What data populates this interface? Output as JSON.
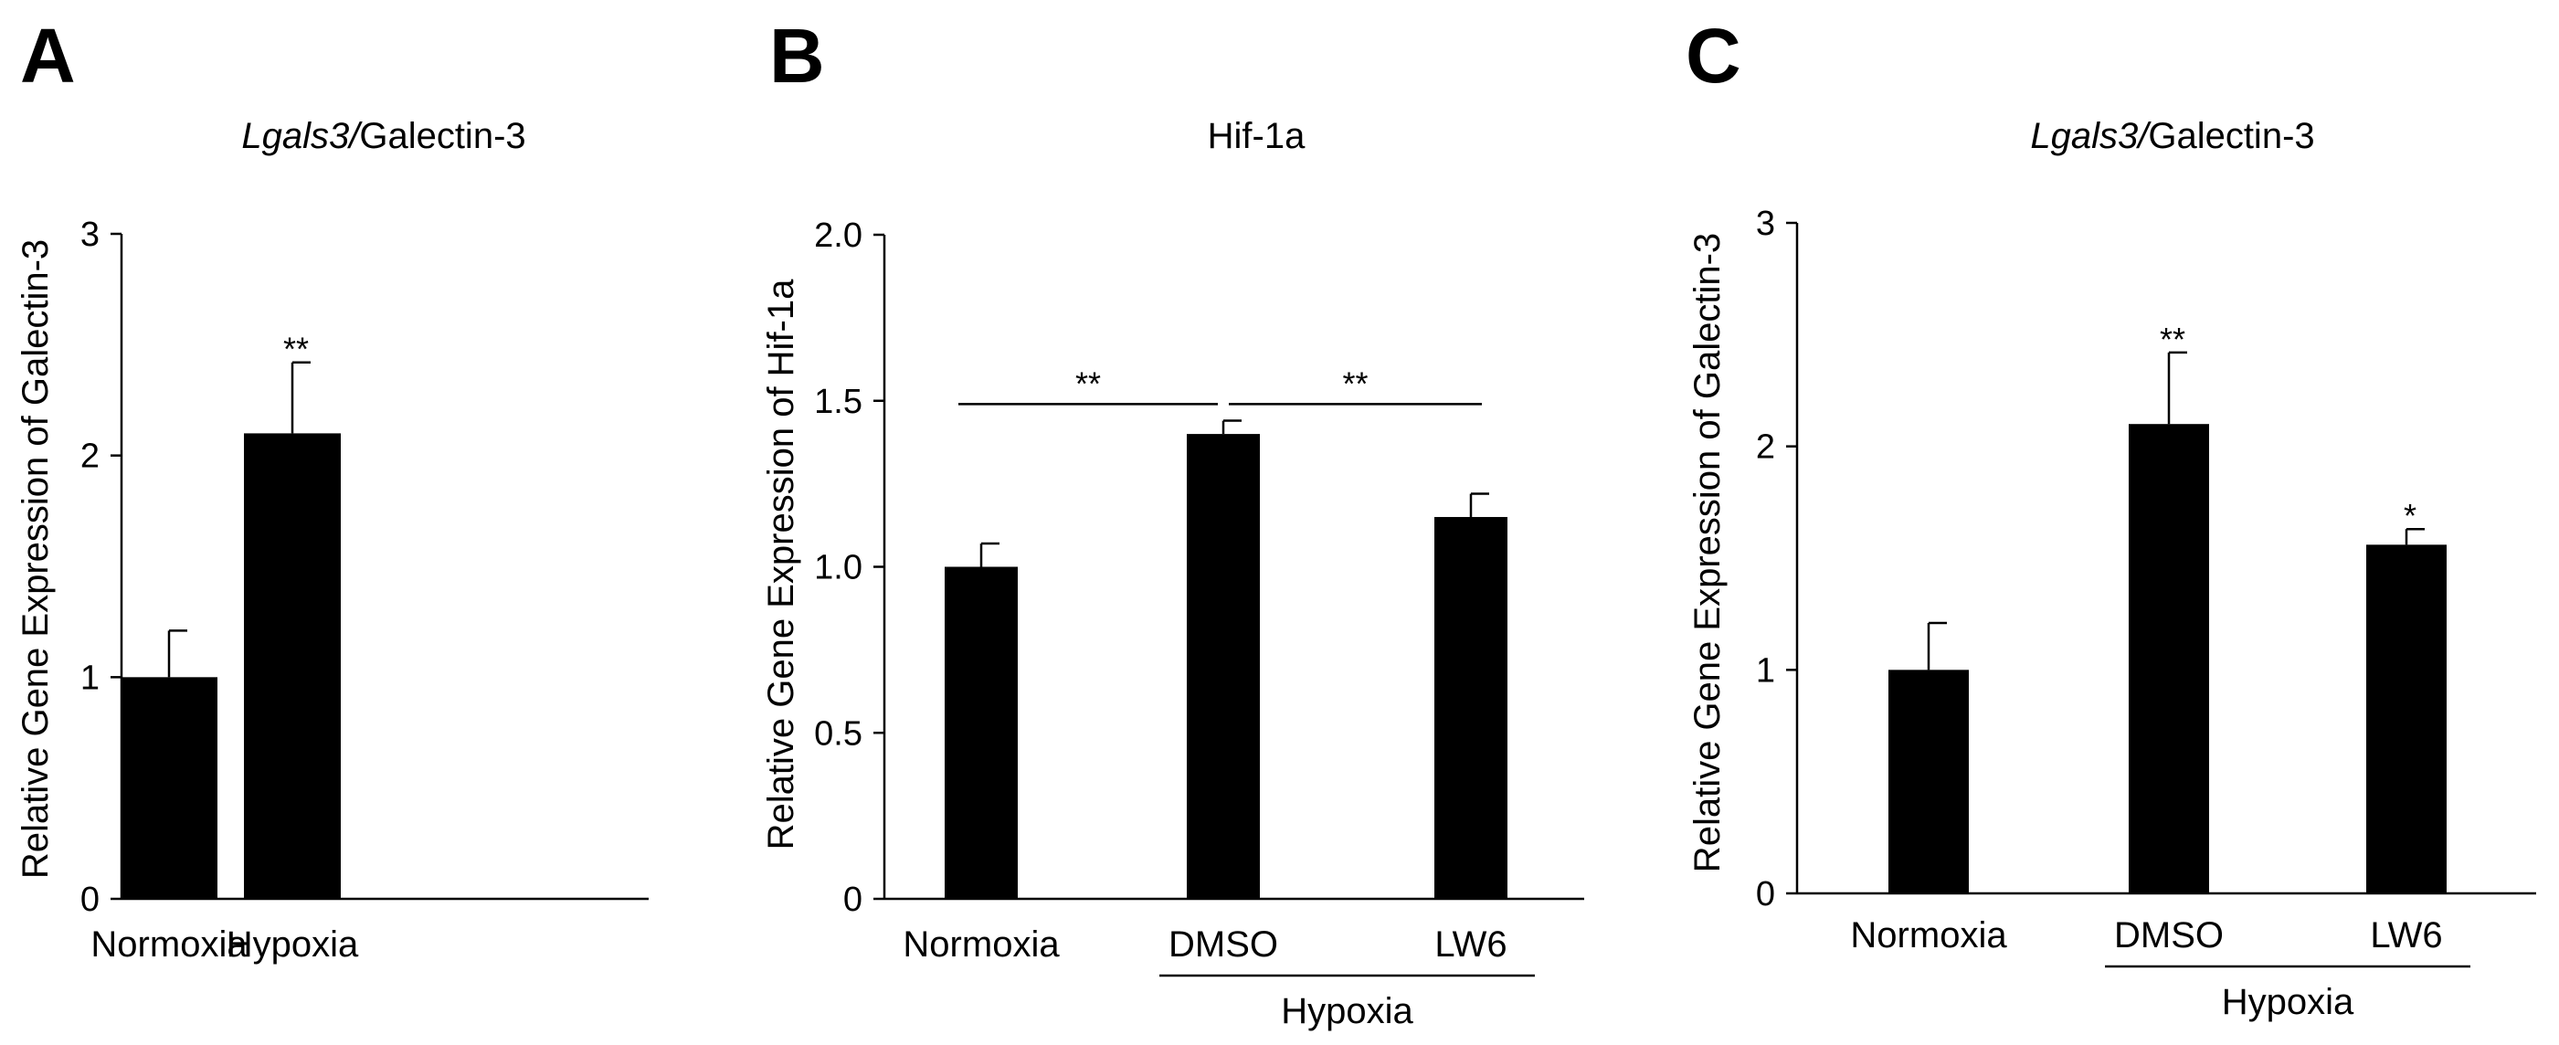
{
  "chart_data": [
    {
      "panel": "A",
      "type": "bar",
      "title_italic": "Lgals3/",
      "title_plain": "Galectin-3",
      "ylabel": "Relative Gene Expression of Galectin-3",
      "xlabel": "",
      "ylim": [
        0,
        3
      ],
      "yticks": [
        0,
        1,
        2,
        3
      ],
      "ytick_labels": [
        "0",
        "1",
        "2",
        "3"
      ],
      "categories": [
        "Normoxia",
        "Hypoxia"
      ],
      "values": [
        1.0,
        2.1
      ],
      "errors": [
        0.21,
        0.32
      ],
      "significance": [
        "",
        "**"
      ],
      "brackets": [],
      "group_label": null
    },
    {
      "panel": "B",
      "type": "bar",
      "title_italic": "",
      "title_plain": "Hif-1a",
      "ylabel": "Relative Gene Expression of Hif-1a",
      "xlabel": "",
      "ylim": [
        0,
        2.0
      ],
      "yticks": [
        0,
        0.5,
        1.0,
        1.5,
        2.0
      ],
      "ytick_labels": [
        "0",
        "0.5",
        "1.0",
        "1.5",
        "2.0"
      ],
      "categories": [
        "Normoxia",
        "DMSO",
        "LW6"
      ],
      "values": [
        1.0,
        1.4,
        1.15
      ],
      "errors": [
        0.07,
        0.04,
        0.07
      ],
      "significance": [
        "",
        "",
        ""
      ],
      "brackets": [
        {
          "from": 0,
          "to": 1,
          "label": "**",
          "level": 1.49
        },
        {
          "from": 1,
          "to": 2,
          "label": "**",
          "level": 1.49
        }
      ],
      "group_label": {
        "text": "Hypoxia",
        "from": 1,
        "to": 2
      }
    },
    {
      "panel": "C",
      "type": "bar",
      "title_italic": "Lgals3/",
      "title_plain": "Galectin-3",
      "ylabel": "Relative Gene Expression of Galectin-3",
      "xlabel": "",
      "ylim": [
        0,
        3
      ],
      "yticks": [
        0,
        1,
        2,
        3
      ],
      "ytick_labels": [
        "0",
        "1",
        "2",
        "3"
      ],
      "categories": [
        "Normoxia",
        "DMSO",
        "LW6"
      ],
      "values": [
        1.0,
        2.1,
        1.56
      ],
      "errors": [
        0.21,
        0.32,
        0.07
      ],
      "significance": [
        "",
        "**",
        "*"
      ],
      "brackets": [],
      "group_label": {
        "text": "Hypoxia",
        "from": 1,
        "to": 2
      }
    }
  ]
}
